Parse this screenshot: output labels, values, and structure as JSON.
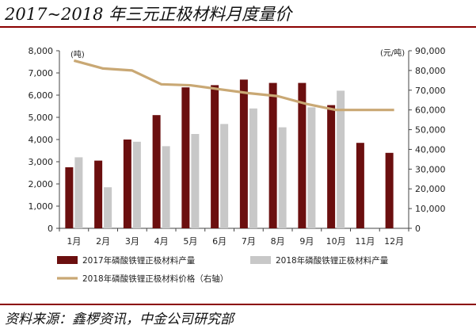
{
  "title": "2017~2018 年三元正极材料月度量价",
  "source": "资料来源：鑫椤资讯，中金公司研究部",
  "chart_data": {
    "type": "bar",
    "categories": [
      "1月",
      "2月",
      "3月",
      "4月",
      "5月",
      "6月",
      "7月",
      "8月",
      "9月",
      "10月",
      "11月",
      "12月"
    ],
    "series": [
      {
        "name": "2017年磷酸铁锂正极材料产量",
        "kind": "bar",
        "axis": "left",
        "color": "#6B0F0F",
        "values": [
          2750,
          3050,
          4000,
          5100,
          6350,
          6450,
          6700,
          6550,
          6550,
          5550,
          3850,
          3400
        ]
      },
      {
        "name": "2018年磷酸铁锂正极材料产量",
        "kind": "bar",
        "axis": "left",
        "color": "#C8C8C8",
        "values": [
          3200,
          1850,
          3900,
          3700,
          4250,
          4700,
          5400,
          4550,
          5450,
          6200,
          null,
          null
        ]
      },
      {
        "name": "2018年磷酸铁锂正极材料价格（右轴）",
        "kind": "line",
        "axis": "right",
        "color": "#C9A874",
        "values": [
          85000,
          81000,
          80000,
          73000,
          72500,
          70500,
          68500,
          67000,
          63000,
          60000,
          60000,
          60000
        ]
      }
    ],
    "y_left": {
      "unit": "(吨)",
      "min": 0,
      "max": 8000,
      "step": 1000,
      "ticks": [
        "0",
        "1,000",
        "2,000",
        "3,000",
        "4,000",
        "5,000",
        "6,000",
        "7,000",
        "8,000"
      ]
    },
    "y_right": {
      "unit": "(元/吨)",
      "min": 0,
      "max": 90000,
      "step": 10000,
      "ticks": [
        "0",
        "10,000",
        "20,000",
        "30,000",
        "40,000",
        "50,000",
        "60,000",
        "70,000",
        "80,000",
        "90,000"
      ]
    },
    "grid": false,
    "legend_position": "bottom"
  }
}
